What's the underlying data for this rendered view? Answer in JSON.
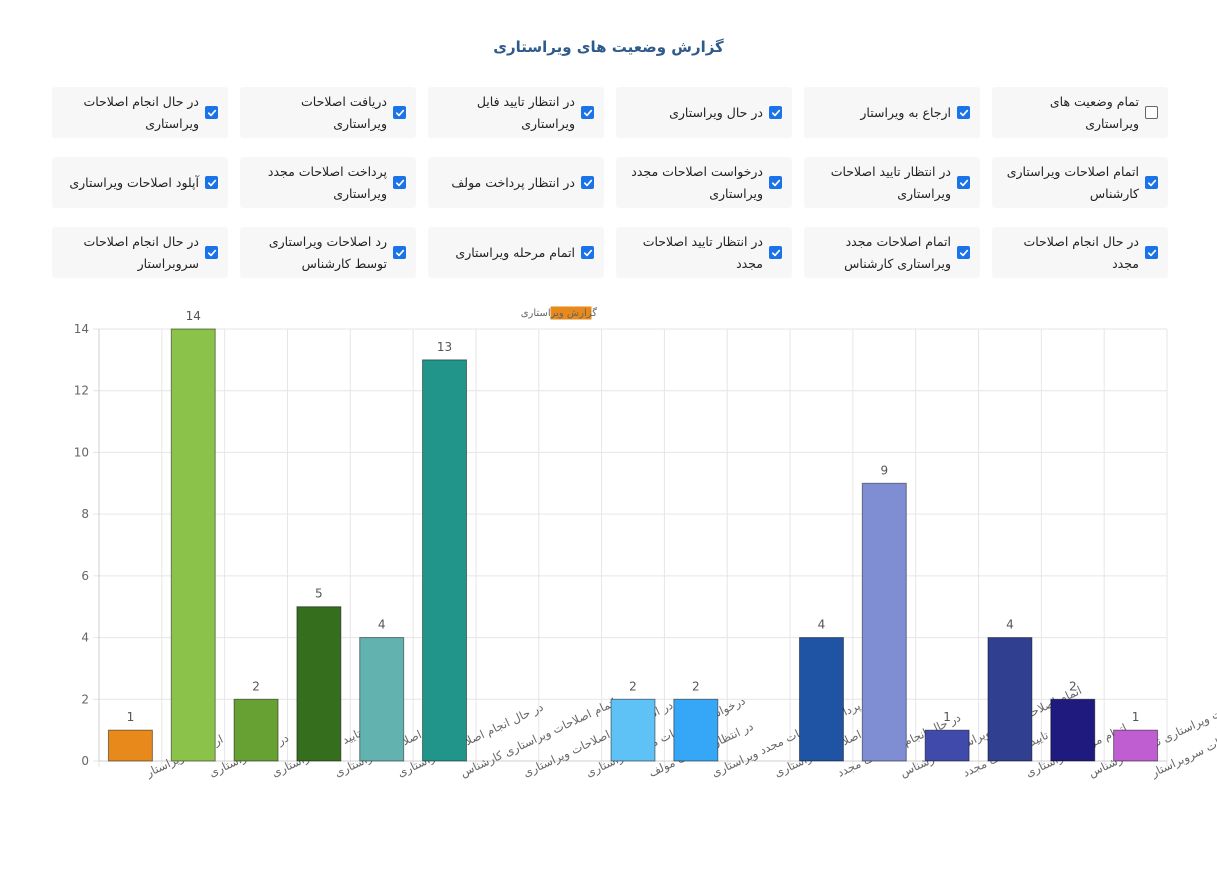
{
  "title": "گزارش وضعیت های ویراستاری",
  "filters": [
    {
      "label": "تمام وضعیت های ویراستاری",
      "checked": false
    },
    {
      "label": "ارجاع به ویراستار",
      "checked": true
    },
    {
      "label": "در حال ویراستاری",
      "checked": true
    },
    {
      "label": "در انتظار تایید فایل ویراستاری",
      "checked": true
    },
    {
      "label": "دریافت اصلاحات ویراستاری",
      "checked": true
    },
    {
      "label": "در حال انجام اصلاحات ویراستاری",
      "checked": true
    },
    {
      "label": "اتمام اصلاحات ویراستاری کارشناس",
      "checked": true
    },
    {
      "label": "در انتظار تایید اصلاحات ویراستاری",
      "checked": true
    },
    {
      "label": "درخواست اصلاحات مجدد ویراستاری",
      "checked": true
    },
    {
      "label": "در انتظار پرداخت مولف",
      "checked": true
    },
    {
      "label": "پرداخت اصلاحات مجدد ویراستاری",
      "checked": true
    },
    {
      "label": "آپلود اصلاحات ویراستاری",
      "checked": true
    },
    {
      "label": "در حال انجام اصلاحات مجدد",
      "checked": true
    },
    {
      "label": "اتمام اصلاحات مجدد ویراستاری کارشناس",
      "checked": true
    },
    {
      "label": "در انتظار تایید اصلاحات مجدد",
      "checked": true
    },
    {
      "label": "اتمام مرحله ویراستاری",
      "checked": true
    },
    {
      "label": "رد اصلاحات ویراستاری توسط کارشناس",
      "checked": true
    },
    {
      "label": "در حال انجام اصلاحات سروبراستار",
      "checked": true
    }
  ],
  "chart_data": {
    "type": "bar",
    "legend": {
      "label": "گزارش ویراستاری",
      "color": "#e8891c",
      "position": "top"
    },
    "ylim": [
      0,
      14
    ],
    "yticks": [
      0,
      2,
      4,
      6,
      8,
      10,
      12,
      14
    ],
    "grid": true,
    "categories": [
      "ارجاع به ویراستار",
      "در حال ویراستاری",
      "در انتظار تایید فایل ویراستاری",
      "دریافت اصلاحات ویراستاری",
      "در حال انجام اصلاحات ویراستاری",
      "اتمام اصلاحات ویراستاری کارشناس",
      "در انتظار تایید اصلاحات ویراستاری",
      "درخواست اصلاحات مجدد ویراستاری",
      "در انتظار پرداخت مولف",
      "پرداخت اصلاحات مجدد ویراستاری",
      "آپلود اصلاحات ویراستاری",
      "در حال انجام اصلاحات مجدد",
      "اتمام اصلاحات مجدد ویراستاری کارشناس",
      "در انتظار تایید اصلاحات مجدد",
      "اتمام مرحله ویراستاری",
      "رد اصلاحات ویراستاری توسط کارشناس",
      "در حال انجام اصلاحات سروبراستار"
    ],
    "values": [
      1,
      14,
      2,
      5,
      4,
      13,
      0,
      0,
      2,
      2,
      0,
      4,
      9,
      1,
      4,
      2,
      1
    ],
    "colors": [
      "#e8891c",
      "#8bc34a",
      "#67a133",
      "#356e1c",
      "#62b2b0",
      "#21958a",
      "#9e9e9e",
      "#9e9e9e",
      "#5ec2f7",
      "#35a7f6",
      "#9e9e9e",
      "#1f53a4",
      "#7f8ed3",
      "#3f4aab",
      "#303f8f",
      "#1f1a7e",
      "#bf5ed1"
    ]
  }
}
